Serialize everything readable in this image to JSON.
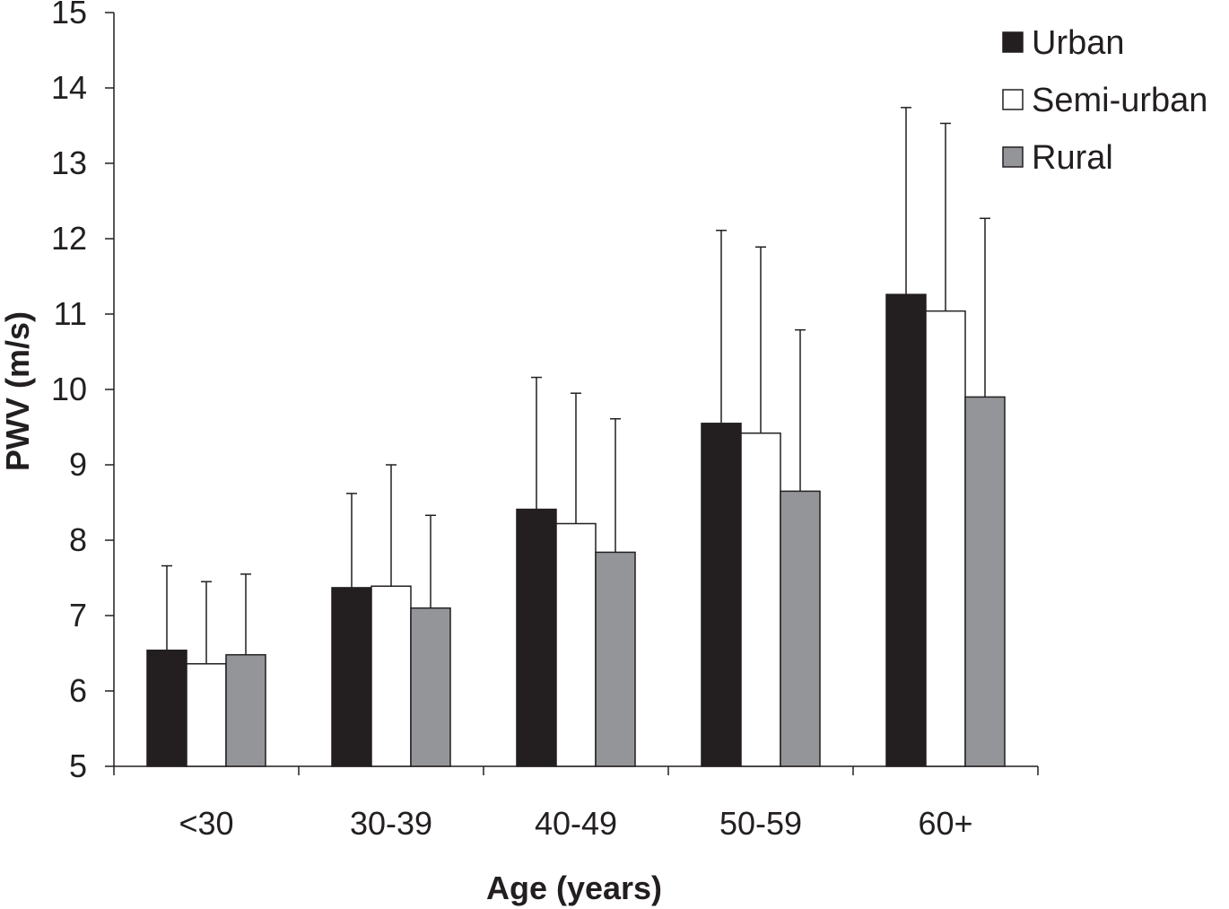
{
  "chart_data": {
    "type": "bar",
    "xlabel": "Age (years)",
    "ylabel": "PWV (m/s)",
    "ylim": [
      5,
      15
    ],
    "yticks": [
      5,
      6,
      7,
      8,
      9,
      10,
      11,
      12,
      13,
      14,
      15
    ],
    "categories": [
      "<30",
      "30-39",
      "40-49",
      "50-59",
      "60+"
    ],
    "series": [
      {
        "name": "Urban",
        "color": "#231f20",
        "values": [
          6.54,
          7.37,
          8.41,
          9.55,
          11.26
        ],
        "error_upper": [
          7.66,
          8.62,
          10.16,
          12.11,
          13.74
        ]
      },
      {
        "name": "Semi-urban",
        "color": "#ffffff",
        "values": [
          6.36,
          7.39,
          8.22,
          9.42,
          11.04
        ],
        "error_upper": [
          7.45,
          9.0,
          9.95,
          11.89,
          13.53
        ]
      },
      {
        "name": "Rural",
        "color": "#939598",
        "values": [
          6.48,
          7.1,
          7.84,
          8.65,
          9.9
        ],
        "error_upper": [
          7.55,
          8.33,
          9.61,
          10.79,
          12.27
        ]
      }
    ],
    "legend_position": "top-right",
    "grid": false
  }
}
